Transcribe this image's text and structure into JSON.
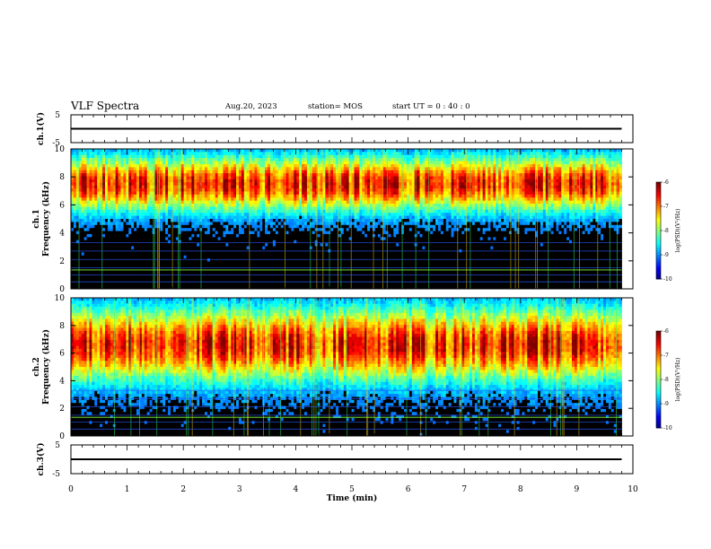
{
  "header": {
    "title": "VLF Spectra",
    "date": "Aug.20, 2023",
    "station": "station= MOS",
    "start_ut": "start  UT =   0  : 40 : 0"
  },
  "chart_data": [
    {
      "type": "line",
      "name": "ch.1 waveform strip",
      "ylabel": "ch.1(V)",
      "ylim": [
        -5,
        5
      ],
      "yticks": [
        "5",
        "-5"
      ],
      "xlim": [
        0,
        10
      ],
      "series": [
        {
          "x": [
            0,
            9.8
          ],
          "values": [
            0,
            0
          ]
        }
      ],
      "grid": false
    },
    {
      "type": "heatmap",
      "name": "ch.1 spectrogram",
      "ylabel": "ch.1\nFrequency (kHz)",
      "ylim": [
        0,
        10
      ],
      "yticks": [
        "0",
        "2",
        "4",
        "6",
        "8",
        "10"
      ],
      "xlim": [
        0,
        10
      ],
      "data_extent_min": 9.8,
      "colorbar": {
        "label": "log(PSD)(V²/Hz)",
        "min": -10,
        "max": -6,
        "ticks": [
          "-6",
          "-7",
          "-8",
          "-9",
          "-10"
        ]
      },
      "band_center_khz": 7.5,
      "band_halfwidth_khz": 1.9
    },
    {
      "type": "heatmap",
      "name": "ch.2 spectrogram",
      "ylabel": "ch.2\nFrequency (kHz)",
      "ylim": [
        0,
        10
      ],
      "yticks": [
        "0",
        "2",
        "4",
        "6",
        "8",
        "10"
      ],
      "xlim": [
        0,
        10
      ],
      "data_extent_min": 9.8,
      "colorbar": {
        "label": "log(PSD)(V²/Hz)",
        "min": -10,
        "max": -6,
        "ticks": [
          "-6",
          "-7",
          "-8",
          "-9",
          "-10"
        ]
      },
      "band_center_khz": 6.6,
      "band_halfwidth_khz": 2.6
    },
    {
      "type": "line",
      "name": "ch.3 waveform strip",
      "ylabel": "ch.3(V)",
      "ylim": [
        -5,
        5
      ],
      "yticks": [
        "5",
        "-5"
      ],
      "xlim": [
        0,
        10
      ],
      "xlabel": "Time  (min)",
      "xticks": [
        "0",
        "1",
        "2",
        "3",
        "4",
        "5",
        "6",
        "7",
        "8",
        "9",
        "10"
      ],
      "series": [
        {
          "x": [
            0,
            9.8
          ],
          "values": [
            0,
            0
          ]
        }
      ],
      "grid": false
    }
  ],
  "colors": {
    "jet_low": "#00008f",
    "jet_mid": "#00ff80",
    "jet_high": "#ff1a00",
    "background": "#000000"
  }
}
